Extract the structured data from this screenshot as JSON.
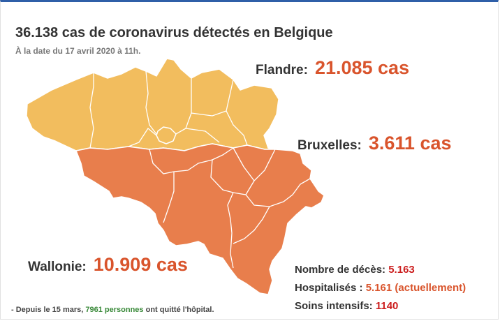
{
  "title": "36.138 cas de coronavirus détectés en Belgique",
  "subtitle": "À la date du 17 avril 2020 à 11h.",
  "colors": {
    "flandre": "#f2bd5e",
    "wallonie": "#e87e4c",
    "value": "#d9542c",
    "deaths": "#cc1f1f",
    "hospital": "#d9542c",
    "icu": "#cc1f1f",
    "footnote_highlight": "#3a8a3a",
    "accent_bar": "#2f5fa8"
  },
  "regions": {
    "flandre": {
      "name": "Flandre:",
      "value": "21.085 cas"
    },
    "bruxelles": {
      "name": "Bruxelles:",
      "value": "3.611 cas"
    },
    "wallonie": {
      "name": "Wallonie:",
      "value": "10.909 cas"
    }
  },
  "stats": {
    "deaths": {
      "label": "Nombre de décès:",
      "value": "5.163"
    },
    "hospital": {
      "label": "Hospitalisés :",
      "value": "5.161 (actuellement)"
    },
    "icu": {
      "label": "Soins intensifs:",
      "value": "1140"
    }
  },
  "footnote": {
    "prefix": "- Depuis le 15 mars,",
    "highlight": "7961 personnes",
    "suffix": "ont quitté l'hôpital."
  }
}
